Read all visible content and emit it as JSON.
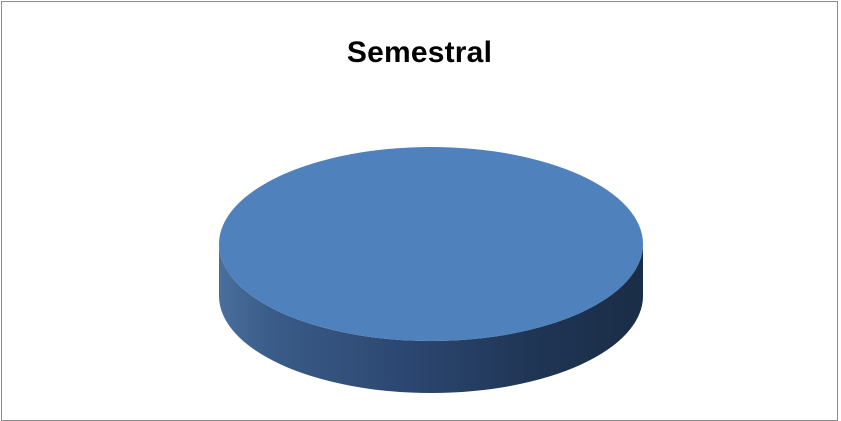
{
  "chart_data": {
    "type": "pie",
    "title": "Semestral",
    "style": "3d",
    "slices": [
      {
        "value": 100,
        "color": "#4f81bd"
      }
    ]
  }
}
